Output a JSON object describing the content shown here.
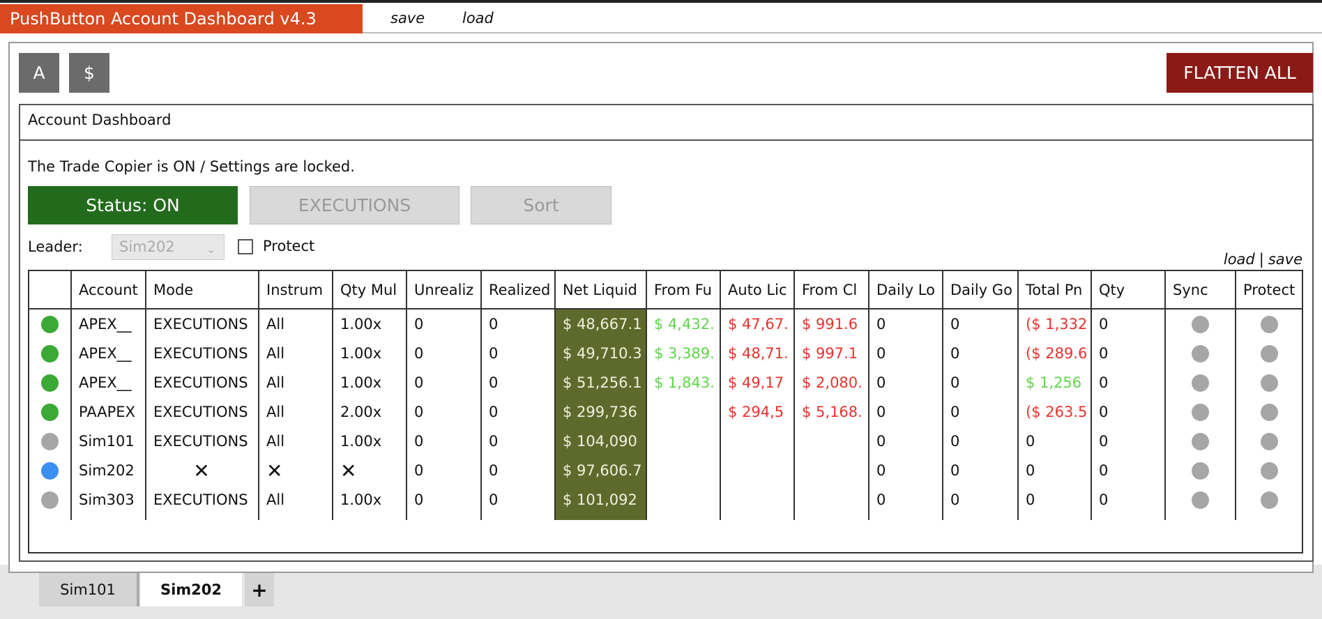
{
  "header": {
    "title": "PushButton Account Dashboard v4.3",
    "menu": [
      "save",
      "load"
    ]
  },
  "toolbar": {
    "buttons": [
      "A",
      "$"
    ],
    "flatten": "FLATTEN ALL"
  },
  "panel": {
    "title": "Account Dashboard",
    "status_text": "The Trade Copier is ON / Settings are locked.",
    "buttons": [
      "Status: ON",
      "EXECUTIONS",
      "Sort"
    ],
    "leader_label": "Leader:",
    "leader_value": "Sim202",
    "protect_label": "Protect",
    "links": [
      "load",
      "|",
      "save"
    ]
  },
  "table": {
    "columns": [
      "Account",
      "Mode",
      "Instrum",
      "Qty Mul",
      "Unrealiz",
      "Realized",
      "Net Liquid",
      "From Fu",
      "Auto Lic",
      "From Cl",
      "Daily Lo",
      "Daily Go",
      "Total Pn",
      "Qty",
      "Sync",
      "Protect"
    ],
    "rows": [
      {
        "status_color": "#3aa935",
        "cells": [
          "APEX__",
          "EXECUTIONS",
          "All",
          "1.00x",
          "0",
          "0",
          "$ 48,667.1",
          "$ 4,432.",
          "$ 47,67.",
          "$ 991.6",
          "0",
          "0",
          "($ 1,332",
          "0"
        ]
      },
      {
        "status_color": "#3aa935",
        "cells": [
          "APEX__",
          "EXECUTIONS",
          "All",
          "1.00x",
          "0",
          "0",
          "$ 49,710.3",
          "$ 3,389.",
          "$ 48,71.",
          "$ 997.1",
          "0",
          "0",
          "($ 289.6",
          "0"
        ]
      },
      {
        "status_color": "#3aa935",
        "cells": [
          "APEX__",
          "EXECUTIONS",
          "All",
          "1.00x",
          "0",
          "0",
          "$ 51,256.1",
          "$ 1,843.",
          "$ 49,17",
          "$ 2,080.",
          "0",
          "0",
          "$ 1,256",
          "0"
        ]
      },
      {
        "status_color": "#3aa935",
        "cells": [
          "PAAPEX",
          "EXECUTIONS",
          "All",
          "2.00x",
          "0",
          "0",
          "$ 299,736",
          null,
          "$ 294,5",
          "$ 5,168.",
          "0",
          "0",
          "($ 263.5",
          "0"
        ]
      },
      {
        "status_color": "#a6a6a6",
        "cells": [
          "Sim101",
          "EXECUTIONS",
          "All",
          "1.00x",
          "0",
          "0",
          "$ 104,090",
          null,
          null,
          null,
          "0",
          "0",
          "0",
          "0"
        ]
      },
      {
        "status_color": "#3b8ff0",
        "cells": [
          "Sim202",
          "✕",
          "✕",
          "✕",
          "0",
          "0",
          "$ 97,606.7",
          null,
          null,
          null,
          "0",
          "0",
          "0",
          "0"
        ]
      },
      {
        "status_color": "#a6a6a6",
        "cells": [
          "Sim303",
          "EXECUTIONS",
          "All",
          "1.00x",
          "0",
          "0",
          "$ 101,092",
          null,
          null,
          null,
          "0",
          "0",
          "0",
          "0"
        ]
      }
    ]
  },
  "tabs": [
    "Sim101",
    "Sim202",
    "+"
  ]
}
